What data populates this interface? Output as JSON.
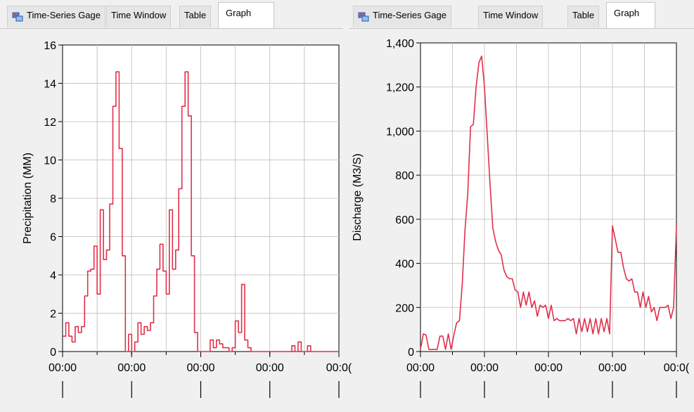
{
  "left_panel": {
    "tabs": [
      {
        "label": "Time-Series Gage",
        "icon": "time-series-gage-icon",
        "active": false
      },
      {
        "label": "Time Window",
        "active": false
      },
      {
        "label": "Table",
        "active": false
      },
      {
        "label": "Graph",
        "active": true
      }
    ]
  },
  "right_panel": {
    "tabs": [
      {
        "label": "Time-Series Gage",
        "icon": "time-series-gage-icon",
        "active": false
      },
      {
        "label": "Time Window",
        "active": false
      },
      {
        "label": "Table",
        "active": false
      },
      {
        "label": "Graph",
        "active": true
      }
    ]
  },
  "colors": {
    "series": "#e0304a",
    "grid": "#c8c8c8",
    "plot_bg": "#ffffff",
    "panel_bg": "#f0f0f0"
  },
  "chart_data": [
    {
      "type": "line",
      "step": true,
      "ylabel": "Precipitation (MM)",
      "ylim": [
        0,
        16
      ],
      "yticks": [
        "0",
        "2",
        "4",
        "6",
        "8",
        "10",
        "12",
        "14",
        "16"
      ],
      "xticks": [
        "00:00",
        "00:00",
        "00:00",
        "00:00",
        "00:0("
      ],
      "grid": true,
      "series": [
        {
          "values": [
            0.8,
            1.5,
            0.8,
            0.5,
            1.3,
            1.0,
            1.3,
            2.9,
            4.2,
            4.3,
            5.5,
            3.0,
            7.4,
            4.8,
            5.3,
            7.7,
            12.8,
            14.6,
            10.6,
            5.0,
            0,
            0.9,
            0,
            0.5,
            1.5,
            0.9,
            1.3,
            1.1,
            1.5,
            2.9,
            4.3,
            5.6,
            4.2,
            3.0,
            7.4,
            4.3,
            5.3,
            8.5,
            12.8,
            14.6,
            12.3,
            5.0,
            1.0,
            0,
            0,
            0,
            0,
            0.6,
            0.2,
            0.6,
            0.4,
            0.2,
            0.2,
            0,
            0.2,
            1.6,
            1.0,
            3.5,
            0.6,
            0.2,
            0,
            0,
            0,
            0,
            0,
            0,
            0,
            0,
            0,
            0,
            0,
            0,
            0,
            0.3,
            0,
            0.5,
            0,
            0,
            0.3,
            0,
            0,
            0,
            0,
            0,
            0,
            0,
            0,
            0
          ]
        }
      ]
    },
    {
      "type": "line",
      "ylabel": "Discharge (M3/S)",
      "ylim": [
        0,
        1400
      ],
      "yticks": [
        "0",
        "200",
        "400",
        "600",
        "800",
        "1,000",
        "1,200",
        "1,400"
      ],
      "xticks": [
        "00:00",
        "00:00",
        "00:00",
        "00:00",
        "00:0("
      ],
      "grid": true,
      "series": [
        {
          "values": [
            10,
            80,
            75,
            10,
            10,
            10,
            10,
            70,
            70,
            10,
            80,
            10,
            75,
            130,
            140,
            300,
            550,
            720,
            1020,
            1030,
            1200,
            1310,
            1340,
            1200,
            980,
            760,
            560,
            500,
            460,
            440,
            370,
            340,
            330,
            330,
            280,
            270,
            200,
            270,
            210,
            270,
            200,
            230,
            160,
            210,
            200,
            210,
            150,
            210,
            140,
            150,
            140,
            140,
            140,
            150,
            140,
            150,
            80,
            150,
            90,
            150,
            90,
            150,
            80,
            150,
            80,
            150,
            90,
            150,
            80,
            570,
            510,
            450,
            450,
            380,
            330,
            320,
            330,
            270,
            270,
            200,
            270,
            200,
            250,
            180,
            200,
            140,
            200,
            200,
            200,
            210,
            150,
            200,
            570
          ]
        }
      ]
    }
  ]
}
